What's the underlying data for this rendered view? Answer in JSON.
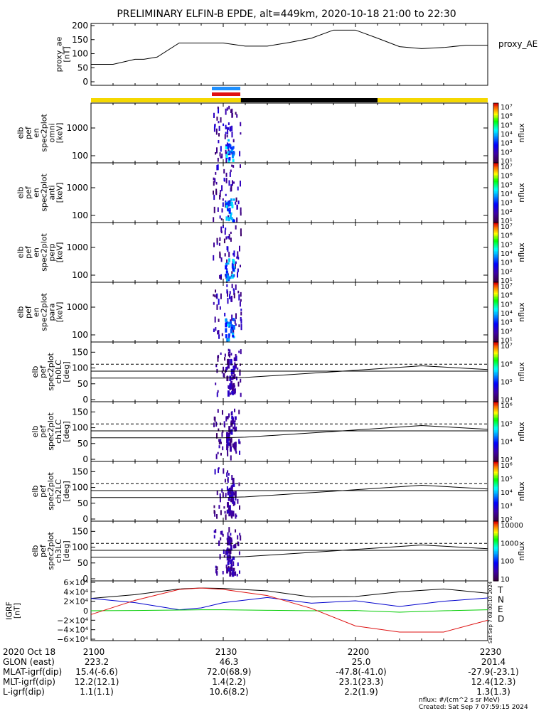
{
  "title": "PRELIMINARY ELFIN-B EPDE, alt=449km, 2020-10-18 21:00 to 22:30",
  "chart_data": [
    {
      "type": "line",
      "ylabel_lines": [
        "proxy_ae",
        "[nT]"
      ],
      "series": [
        {
          "name": "proxy_AE"
        }
      ],
      "yticks": [
        "200",
        "150",
        "100",
        "50",
        "0"
      ],
      "ylim": [
        0,
        200
      ],
      "x_minutes": [
        0,
        5,
        10,
        12,
        15,
        20,
        25,
        30,
        35,
        40,
        45,
        50,
        55,
        60,
        65,
        70,
        75,
        80,
        85,
        90
      ],
      "values": [
        62,
        62,
        80,
        80,
        88,
        138,
        138,
        138,
        127,
        127,
        140,
        155,
        184,
        184,
        155,
        125,
        118,
        122,
        130,
        130
      ]
    },
    {
      "type": "heatmap",
      "ylabel_lines": [
        "elb",
        "pef",
        "en",
        "spec2plot",
        "omni",
        "[keV]"
      ],
      "yticks": [
        "1000",
        "100"
      ],
      "cbar_label": "nflux",
      "cbar_ticks": [
        "10⁷",
        "10⁶",
        "10⁵",
        "10⁴",
        "10³",
        "10²",
        "10¹"
      ]
    },
    {
      "type": "heatmap",
      "ylabel_lines": [
        "elb",
        "pef",
        "en",
        "spec2plot",
        "anti",
        "[keV]"
      ],
      "yticks": [
        "1000",
        "100"
      ],
      "cbar_label": "nflux",
      "cbar_ticks": [
        "10⁷",
        "10⁶",
        "10⁵",
        "10⁴",
        "10³",
        "10²",
        "10¹"
      ]
    },
    {
      "type": "heatmap",
      "ylabel_lines": [
        "elb",
        "pef",
        "en",
        "spec2plot",
        "perp",
        "[keV]"
      ],
      "yticks": [
        "1000",
        "100"
      ],
      "cbar_label": "nflux",
      "cbar_ticks": [
        "10⁷",
        "10⁶",
        "10⁵",
        "10⁴",
        "10³",
        "10²",
        "10¹"
      ]
    },
    {
      "type": "heatmap",
      "ylabel_lines": [
        "elb",
        "pef",
        "en",
        "spec2plot",
        "para",
        "[keV]"
      ],
      "yticks": [
        "1000",
        "100"
      ],
      "cbar_label": "nflux",
      "cbar_ticks": [
        "10⁷",
        "10⁶",
        "10⁵",
        "10⁴",
        "10³",
        "10²",
        "10¹"
      ]
    },
    {
      "type": "heatmap",
      "ylabel_lines": [
        "elb",
        "pef",
        "spec2plot",
        "ch0LC",
        "[deg]"
      ],
      "yticks": [
        "150",
        "100",
        "50",
        "0"
      ],
      "ylim": [
        0,
        180
      ],
      "cbar_label": "nflux",
      "cbar_ticks": [
        "10⁷",
        "10⁶",
        "10⁵",
        "10⁴"
      ]
    },
    {
      "type": "heatmap",
      "ylabel_lines": [
        "elb",
        "pef",
        "spec2plot",
        "ch1LC",
        "[deg]"
      ],
      "yticks": [
        "150",
        "100",
        "50",
        "0"
      ],
      "ylim": [
        0,
        180
      ],
      "cbar_label": "nflux",
      "cbar_ticks": [
        "10⁶",
        "10⁵",
        "10⁴",
        "10³"
      ]
    },
    {
      "type": "heatmap",
      "ylabel_lines": [
        "elb",
        "pef",
        "spec2plot",
        "ch2LC",
        "[deg]"
      ],
      "yticks": [
        "150",
        "100",
        "50",
        "0"
      ],
      "ylim": [
        0,
        180
      ],
      "cbar_label": "nflux",
      "cbar_ticks": [
        "10⁶",
        "10⁵",
        "10⁴",
        "10³",
        "10²"
      ]
    },
    {
      "type": "heatmap",
      "ylabel_lines": [
        "elb",
        "pef",
        "spec2plot",
        "ch3LC",
        "[deg]"
      ],
      "yticks": [
        "150",
        "100",
        "50",
        "0"
      ],
      "ylim": [
        0,
        180
      ],
      "cbar_label": "nflux",
      "cbar_ticks": [
        "10000",
        "1000",
        "100",
        "10"
      ]
    },
    {
      "type": "line",
      "ylabel_lines": [
        "IGRF",
        "[nT]"
      ],
      "ylim": [
        -60000,
        60000
      ],
      "yticks": [
        "6×10⁴",
        "4×10⁴",
        "2×10⁴",
        "0",
        "−2×10⁴",
        "−4×10⁴",
        "−6×10⁴"
      ],
      "x_minutes": [
        0,
        10,
        20,
        25,
        30,
        40,
        50,
        60,
        70,
        80,
        90
      ],
      "series": [
        {
          "name": "T",
          "color": "#000000",
          "values": [
            26000,
            34000,
            46000,
            48000,
            47000,
            42000,
            29000,
            30000,
            40000,
            46000,
            37000
          ]
        },
        {
          "name": "N",
          "color": "#0000cc",
          "values": [
            26000,
            17000,
            2000,
            6000,
            17000,
            28000,
            16000,
            21000,
            9000,
            20000,
            27000
          ]
        },
        {
          "name": "E",
          "color": "#00cc00",
          "values": [
            0,
            500,
            1500,
            2000,
            2000,
            1000,
            0,
            500,
            -3000,
            0,
            2000
          ]
        },
        {
          "name": "D",
          "color": "#dd1111",
          "values": [
            -8000,
            22000,
            45000,
            48000,
            45000,
            32000,
            5000,
            -32000,
            -45000,
            -45000,
            -20000
          ]
        }
      ]
    }
  ],
  "xaxis": {
    "date": "2020 Oct 18",
    "ticks": [
      "2100",
      "2130",
      "2200",
      "2230"
    ],
    "rows": [
      {
        "label": "GLON (east)",
        "values": [
          "223.2",
          "46.3",
          "25.0",
          "201.4"
        ]
      },
      {
        "label": "MLAT-igrf(dip)",
        "values": [
          "15.4(-6.6)",
          "72.0(68.9)",
          "-47.8(-41.0)",
          "-27.9(-23.1)"
        ]
      },
      {
        "label": "MLT-igrf(dip)",
        "values": [
          "12.2(12.1)",
          "1.4(2.2)",
          "23.1(23.3)",
          "12.4(12.3)"
        ]
      },
      {
        "label": "L-igrf(dip)",
        "values": [
          "1.1(1.1)",
          "10.6(8.2)",
          "2.2(1.9)",
          "1.3(1.3)"
        ]
      }
    ]
  },
  "footer": {
    "units": "nflux: #/(cm^2 s sr MeV)",
    "created": "Created: Sat Sep  7 07:59:15 2024",
    "stamp": "Sat Sep  7 08:00:10 2024"
  },
  "colors": {
    "yellow_bar": "#f5d800",
    "black_bar": "#000000",
    "blue_bar": "#1e90ff",
    "red_bar": "#e01010"
  }
}
